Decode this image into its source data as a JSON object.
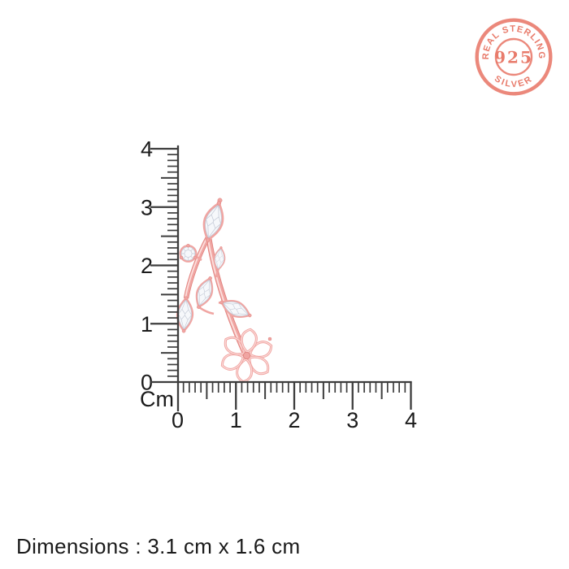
{
  "badge": {
    "top_text": "REAL STERLING",
    "center_text": "925",
    "bottom_text": "SILVER",
    "color": "#e7705f"
  },
  "ruler": {
    "unit_label": "Cm",
    "vertical_labels": [
      "4",
      "3",
      "2",
      "1",
      "0"
    ],
    "horizontal_labels": [
      "0",
      "1",
      "2",
      "3",
      "4"
    ],
    "cm_max": 4,
    "minor_step_cm": 0.1,
    "tick_color": "#3d3d3d",
    "label_color": "#1b1b1b"
  },
  "pendant": {
    "metal_color": "#f0a5a2",
    "metal_deep_color": "#e0837f",
    "metal_highlight_color": "#fcdedc",
    "stone_color": "#f6f8fb",
    "stone_facet_color": "#c3c9d6",
    "flower_fill": "#fdfdfd"
  },
  "footer": {
    "dimensions_text": "Dimensions : 3.1 cm x 1.6 cm"
  }
}
